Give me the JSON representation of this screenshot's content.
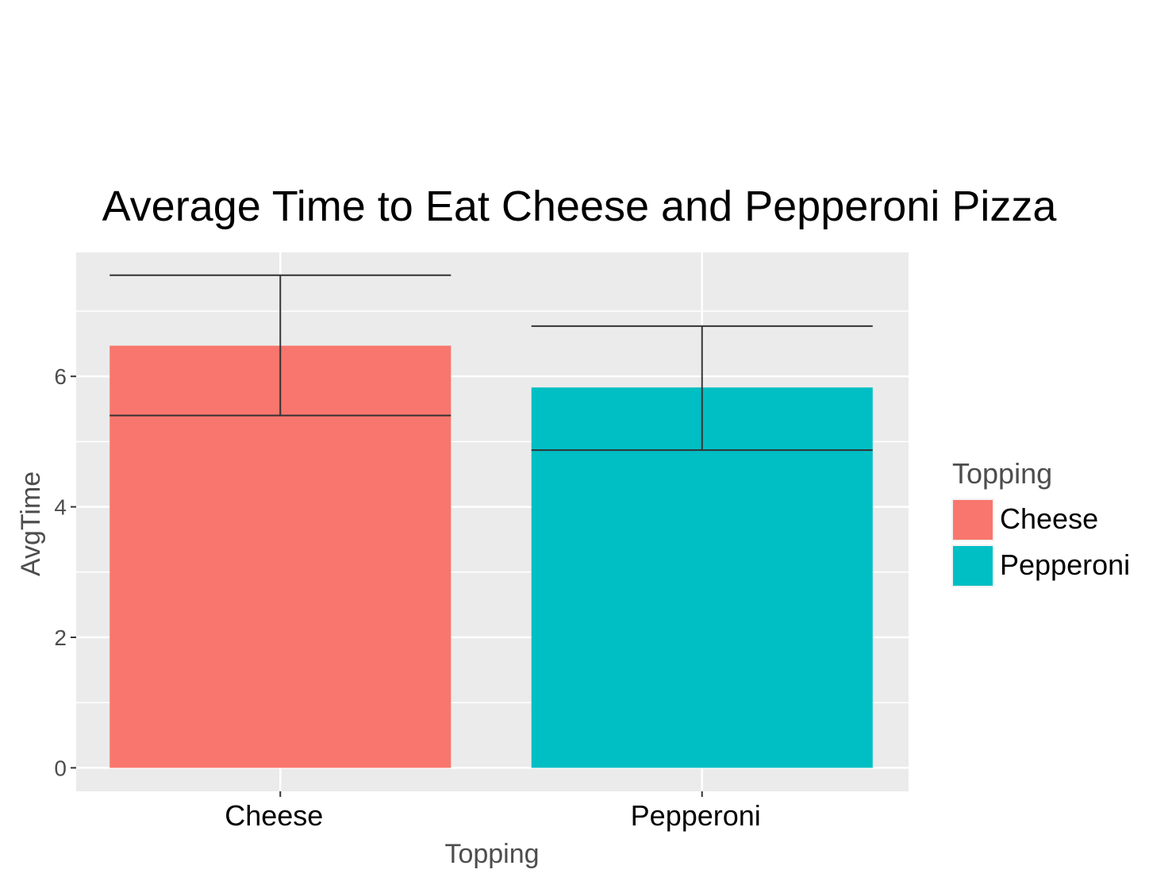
{
  "chart_data": {
    "type": "bar",
    "title": "Average Time to Eat Cheese and Pepperoni Pizza",
    "xlabel": "Topping",
    "ylabel": "AvgTime",
    "categories": [
      "Cheese",
      "Pepperoni"
    ],
    "values": [
      6.47,
      5.83
    ],
    "error_bars": [
      {
        "lower": 5.4,
        "upper": 7.55
      },
      {
        "lower": 4.87,
        "upper": 6.77
      }
    ],
    "ylim": [
      -0.36,
      7.9
    ],
    "yticks": [
      0,
      2,
      4,
      6
    ],
    "ytick_labels": [
      "0",
      "2",
      "4",
      "6"
    ],
    "grid": true,
    "legend": {
      "title": "Topping",
      "position": "right",
      "entries": [
        "Cheese",
        "Pepperoni"
      ]
    },
    "colors": {
      "Cheese": "#F8766D",
      "Pepperoni": "#00BFC4",
      "panel_background": "#EBEBEB",
      "grid": "#FFFFFF",
      "error_bar": "#333333",
      "axis_text": "#4D4D4D"
    }
  }
}
